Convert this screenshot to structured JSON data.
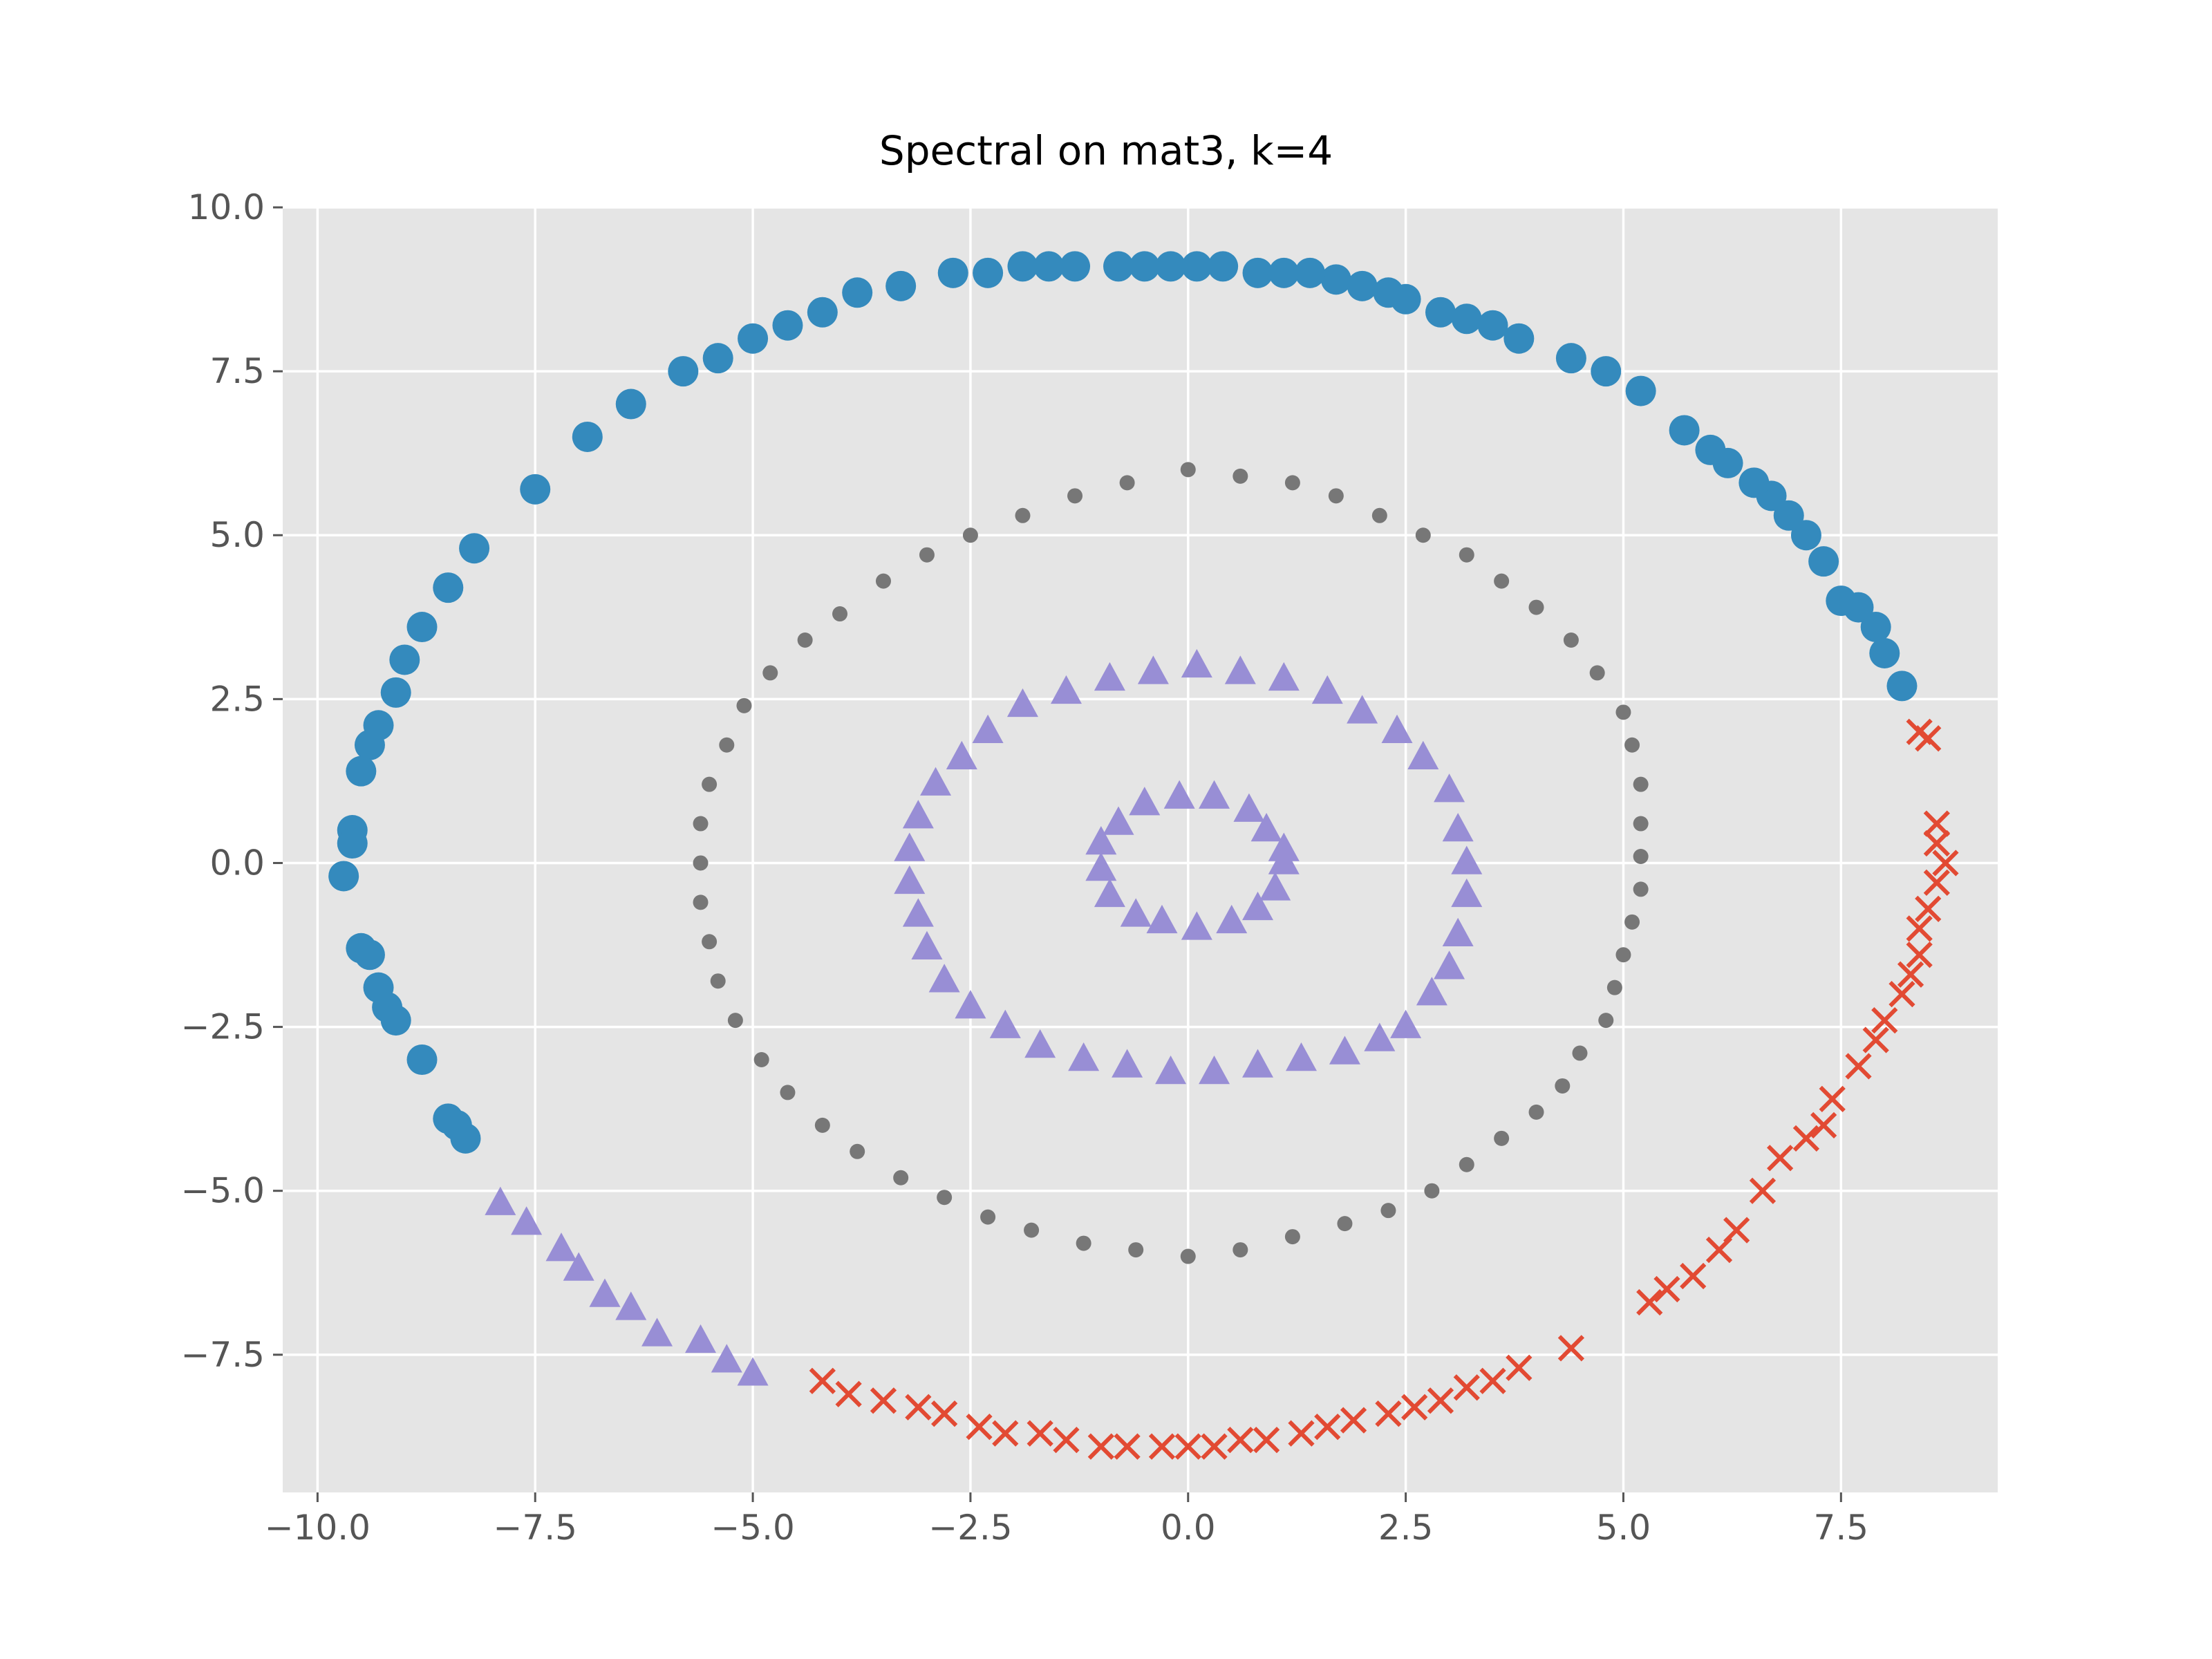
{
  "chart_data": {
    "type": "scatter",
    "title": "Spectral on mat3, k=4",
    "xlabel": "",
    "ylabel": "",
    "xlim": [
      -10.4,
      9.3
    ],
    "ylim": [
      -9.6,
      10.0
    ],
    "grid": true,
    "style": "ggplot",
    "x_ticks": [
      -10.0,
      -7.5,
      -5.0,
      -2.5,
      0.0,
      2.5,
      5.0,
      7.5
    ],
    "y_ticks": [
      -7.5,
      -5.0,
      -2.5,
      0.0,
      2.5,
      5.0,
      7.5,
      10.0
    ],
    "x_tick_labels": [
      "−10.0",
      "−7.5",
      "−5.0",
      "−2.5",
      "0.0",
      "2.5",
      "5.0",
      "7.5"
    ],
    "y_tick_labels": [
      "−7.5",
      "−5.0",
      "−2.5",
      "0.0",
      "2.5",
      "5.0",
      "7.5",
      "10.0"
    ],
    "series": [
      {
        "marker": "circle-large",
        "color": "#348ABD",
        "points": [
          [
            8.2,
            2.7
          ],
          [
            8.0,
            3.2
          ],
          [
            7.9,
            3.6
          ],
          [
            7.7,
            3.9
          ],
          [
            7.5,
            4.0
          ],
          [
            7.3,
            4.6
          ],
          [
            7.1,
            5.0
          ],
          [
            6.9,
            5.3
          ],
          [
            6.7,
            5.6
          ],
          [
            6.5,
            5.8
          ],
          [
            6.2,
            6.1
          ],
          [
            6.0,
            6.3
          ],
          [
            5.7,
            6.6
          ],
          [
            5.2,
            7.2
          ],
          [
            4.8,
            7.5
          ],
          [
            4.4,
            7.7
          ],
          [
            3.8,
            8.0
          ],
          [
            3.5,
            8.2
          ],
          [
            3.2,
            8.3
          ],
          [
            2.9,
            8.4
          ],
          [
            2.5,
            8.6
          ],
          [
            2.3,
            8.7
          ],
          [
            2.0,
            8.8
          ],
          [
            1.7,
            8.9
          ],
          [
            1.4,
            9.0
          ],
          [
            1.1,
            9.0
          ],
          [
            0.8,
            9.0
          ],
          [
            0.4,
            9.1
          ],
          [
            0.1,
            9.1
          ],
          [
            -0.2,
            9.1
          ],
          [
            -0.5,
            9.1
          ],
          [
            -0.8,
            9.1
          ],
          [
            -1.3,
            9.1
          ],
          [
            -1.6,
            9.1
          ],
          [
            -1.9,
            9.1
          ],
          [
            -2.3,
            9.0
          ],
          [
            -2.7,
            9.0
          ],
          [
            -3.3,
            8.8
          ],
          [
            -3.8,
            8.7
          ],
          [
            -4.2,
            8.4
          ],
          [
            -4.6,
            8.2
          ],
          [
            -5.0,
            8.0
          ],
          [
            -5.4,
            7.7
          ],
          [
            -5.8,
            7.5
          ],
          [
            -6.4,
            7.0
          ],
          [
            -6.9,
            6.5
          ],
          [
            -7.5,
            5.7
          ],
          [
            -8.2,
            4.8
          ],
          [
            -8.5,
            4.2
          ],
          [
            -8.8,
            3.6
          ],
          [
            -9.0,
            3.1
          ],
          [
            -9.1,
            2.6
          ],
          [
            -9.3,
            2.1
          ],
          [
            -9.4,
            1.8
          ],
          [
            -9.5,
            1.4
          ],
          [
            -9.6,
            0.5
          ],
          [
            -9.6,
            0.3
          ],
          [
            -9.7,
            -0.2
          ],
          [
            -9.5,
            -1.3
          ],
          [
            -9.4,
            -1.4
          ],
          [
            -9.3,
            -1.9
          ],
          [
            -9.2,
            -2.2
          ],
          [
            -9.1,
            -2.4
          ],
          [
            -8.8,
            -3.0
          ],
          [
            -8.5,
            -3.9
          ],
          [
            -8.4,
            -4.0
          ],
          [
            -8.3,
            -4.2
          ]
        ]
      },
      {
        "marker": "x",
        "color": "#E24A33",
        "points": [
          [
            8.4,
            2.0
          ],
          [
            8.5,
            1.9
          ],
          [
            8.6,
            0.6
          ],
          [
            8.6,
            0.3
          ],
          [
            8.7,
            0.0
          ],
          [
            8.6,
            -0.3
          ],
          [
            8.5,
            -0.7
          ],
          [
            8.4,
            -1.0
          ],
          [
            8.4,
            -1.4
          ],
          [
            8.3,
            -1.7
          ],
          [
            8.2,
            -2.0
          ],
          [
            8.0,
            -2.4
          ],
          [
            7.9,
            -2.7
          ],
          [
            7.7,
            -3.1
          ],
          [
            7.4,
            -3.6
          ],
          [
            7.3,
            -4.0
          ],
          [
            7.1,
            -4.2
          ],
          [
            6.8,
            -4.5
          ],
          [
            6.6,
            -5.0
          ],
          [
            6.3,
            -5.6
          ],
          [
            6.1,
            -5.9
          ],
          [
            5.8,
            -6.3
          ],
          [
            5.5,
            -6.5
          ],
          [
            5.3,
            -6.7
          ],
          [
            4.4,
            -7.4
          ],
          [
            3.8,
            -7.7
          ],
          [
            3.5,
            -7.9
          ],
          [
            3.2,
            -8.0
          ],
          [
            2.9,
            -8.2
          ],
          [
            2.6,
            -8.3
          ],
          [
            2.3,
            -8.4
          ],
          [
            1.9,
            -8.5
          ],
          [
            1.6,
            -8.6
          ],
          [
            1.3,
            -8.7
          ],
          [
            0.9,
            -8.8
          ],
          [
            0.6,
            -8.8
          ],
          [
            0.3,
            -8.9
          ],
          [
            0.0,
            -8.9
          ],
          [
            -0.3,
            -8.9
          ],
          [
            -0.7,
            -8.9
          ],
          [
            -1.0,
            -8.9
          ],
          [
            -1.4,
            -8.8
          ],
          [
            -1.7,
            -8.7
          ],
          [
            -2.1,
            -8.7
          ],
          [
            -2.4,
            -8.6
          ],
          [
            -2.8,
            -8.4
          ],
          [
            -3.1,
            -8.3
          ],
          [
            -3.5,
            -8.2
          ],
          [
            -3.9,
            -8.1
          ],
          [
            -4.2,
            -7.9
          ]
        ]
      },
      {
        "marker": "circle-small",
        "color": "#777777",
        "points": [
          [
            5.2,
            0.6
          ],
          [
            5.2,
            0.1
          ],
          [
            5.2,
            -0.4
          ],
          [
            5.1,
            -0.9
          ],
          [
            5.0,
            -1.4
          ],
          [
            4.9,
            -1.9
          ],
          [
            4.8,
            -2.4
          ],
          [
            4.5,
            -2.9
          ],
          [
            4.3,
            -3.4
          ],
          [
            4.0,
            -3.8
          ],
          [
            3.6,
            -4.2
          ],
          [
            3.2,
            -4.6
          ],
          [
            2.8,
            -5.0
          ],
          [
            2.3,
            -5.3
          ],
          [
            1.8,
            -5.5
          ],
          [
            1.2,
            -5.7
          ],
          [
            0.6,
            -5.9
          ],
          [
            0.0,
            -6.0
          ],
          [
            -0.6,
            -5.9
          ],
          [
            -1.2,
            -5.8
          ],
          [
            -1.8,
            -5.6
          ],
          [
            -2.3,
            -5.4
          ],
          [
            -2.8,
            -5.1
          ],
          [
            -3.3,
            -4.8
          ],
          [
            -3.8,
            -4.4
          ],
          [
            -4.2,
            -4.0
          ],
          [
            -4.6,
            -3.5
          ],
          [
            -4.9,
            -3.0
          ],
          [
            -5.2,
            -2.4
          ],
          [
            -5.4,
            -1.8
          ],
          [
            -5.5,
            -1.2
          ],
          [
            -5.6,
            -0.6
          ],
          [
            -5.6,
            0.0
          ],
          [
            -5.6,
            0.6
          ],
          [
            -5.5,
            1.2
          ],
          [
            -5.3,
            1.8
          ],
          [
            -5.1,
            2.4
          ],
          [
            -4.8,
            2.9
          ],
          [
            -4.4,
            3.4
          ],
          [
            -4.0,
            3.8
          ],
          [
            -3.5,
            4.3
          ],
          [
            -3.0,
            4.7
          ],
          [
            -2.5,
            5.0
          ],
          [
            -1.9,
            5.3
          ],
          [
            -1.3,
            5.6
          ],
          [
            -0.7,
            5.8
          ],
          [
            0.0,
            6.0
          ],
          [
            0.6,
            5.9
          ],
          [
            1.2,
            5.8
          ],
          [
            1.7,
            5.6
          ],
          [
            2.2,
            5.3
          ],
          [
            2.7,
            5.0
          ],
          [
            3.2,
            4.7
          ],
          [
            3.6,
            4.3
          ],
          [
            4.0,
            3.9
          ],
          [
            4.4,
            3.4
          ],
          [
            4.7,
            2.9
          ],
          [
            5.0,
            2.3
          ],
          [
            5.1,
            1.8
          ],
          [
            5.2,
            1.2
          ]
        ]
      },
      {
        "marker": "triangle",
        "color": "#988ED5",
        "points": [
          [
            3.2,
            0.0
          ],
          [
            3.2,
            -0.5
          ],
          [
            3.1,
            -1.1
          ],
          [
            3.0,
            -1.6
          ],
          [
            2.8,
            -2.0
          ],
          [
            2.5,
            -2.5
          ],
          [
            2.2,
            -2.7
          ],
          [
            1.8,
            -2.9
          ],
          [
            1.3,
            -3.0
          ],
          [
            0.8,
            -3.1
          ],
          [
            0.3,
            -3.2
          ],
          [
            -0.2,
            -3.2
          ],
          [
            -0.7,
            -3.1
          ],
          [
            -1.2,
            -3.0
          ],
          [
            -1.7,
            -2.8
          ],
          [
            -2.1,
            -2.5
          ],
          [
            -2.5,
            -2.2
          ],
          [
            -2.8,
            -1.8
          ],
          [
            -3.0,
            -1.3
          ],
          [
            -3.1,
            -0.8
          ],
          [
            -3.2,
            -0.3
          ],
          [
            -3.2,
            0.2
          ],
          [
            -3.1,
            0.7
          ],
          [
            -2.9,
            1.2
          ],
          [
            -2.6,
            1.6
          ],
          [
            -2.3,
            2.0
          ],
          [
            -1.9,
            2.4
          ],
          [
            -1.4,
            2.6
          ],
          [
            -0.9,
            2.8
          ],
          [
            -0.4,
            2.9
          ],
          [
            0.1,
            3.0
          ],
          [
            0.6,
            2.9
          ],
          [
            1.1,
            2.8
          ],
          [
            1.6,
            2.6
          ],
          [
            2.0,
            2.3
          ],
          [
            2.4,
            2.0
          ],
          [
            2.7,
            1.6
          ],
          [
            3.0,
            1.1
          ],
          [
            3.1,
            0.5
          ],
          [
            1.1,
            0.0
          ],
          [
            1.0,
            -0.4
          ],
          [
            0.8,
            -0.7
          ],
          [
            0.5,
            -0.9
          ],
          [
            0.1,
            -1.0
          ],
          [
            -0.3,
            -0.9
          ],
          [
            -0.6,
            -0.8
          ],
          [
            -0.9,
            -0.5
          ],
          [
            -1.0,
            -0.1
          ],
          [
            -1.0,
            0.3
          ],
          [
            -0.8,
            0.6
          ],
          [
            -0.5,
            0.9
          ],
          [
            -0.1,
            1.0
          ],
          [
            0.3,
            1.0
          ],
          [
            0.7,
            0.8
          ],
          [
            0.9,
            0.5
          ],
          [
            1.1,
            0.2
          ],
          [
            -7.9,
            -5.2
          ],
          [
            -7.6,
            -5.5
          ],
          [
            -7.2,
            -5.9
          ],
          [
            -7.0,
            -6.2
          ],
          [
            -6.7,
            -6.6
          ],
          [
            -6.4,
            -6.8
          ],
          [
            -6.1,
            -7.2
          ],
          [
            -5.6,
            -7.3
          ],
          [
            -5.3,
            -7.6
          ],
          [
            -5.0,
            -7.8
          ]
        ]
      }
    ]
  }
}
